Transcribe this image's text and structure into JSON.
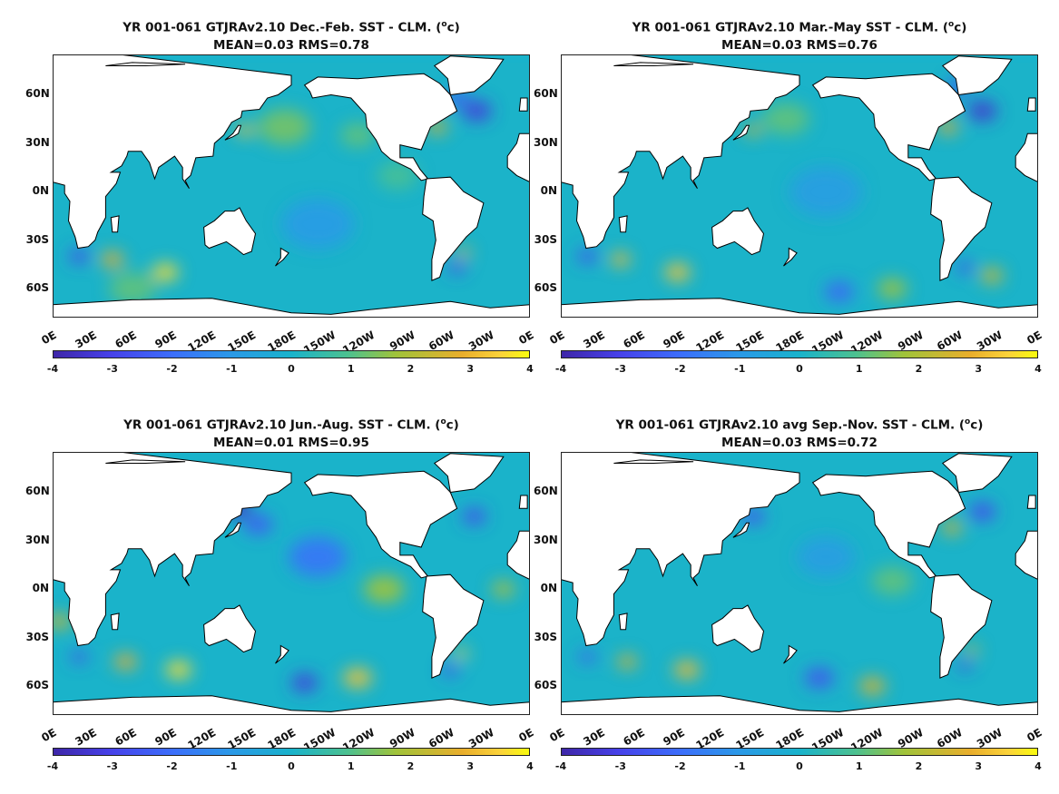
{
  "chart_data": [
    {
      "type": "heatmap",
      "title_prefix": "YR 001-061 GTJRAv2.10  Dec.-Feb. SST - CLM. (",
      "title_unit_sup": "o",
      "title_suffix": "c)",
      "subtitle": "MEAN=0.03   RMS=0.78",
      "mean": 0.03,
      "rms": 0.78,
      "colorbar": {
        "range": [
          -4,
          4
        ],
        "ticks": [
          "-4",
          "-3",
          "-2",
          "-1",
          "0",
          "1",
          "2",
          "3",
          "4"
        ]
      },
      "x_ticks": [
        "0E",
        "30E",
        "60E",
        "90E",
        "120E",
        "150E",
        "180E",
        "150W",
        "120W",
        "90W",
        "60W",
        "30W",
        "0E"
      ],
      "y_ticks": [
        "60N",
        "30N",
        "0N",
        "30S",
        "60S"
      ],
      "xlim": [
        0,
        360
      ],
      "ylim": [
        -78,
        85
      ],
      "anomalies": [
        {
          "lon": 320,
          "lat": 50,
          "value": -3.2,
          "spread": 10
        },
        {
          "lon": 305,
          "lat": 58,
          "value": -2.4,
          "spread": 8
        },
        {
          "lon": 290,
          "lat": 40,
          "value": 2.6,
          "spread": 7
        },
        {
          "lon": 145,
          "lat": 38,
          "value": 3.2,
          "spread": 6
        },
        {
          "lon": 85,
          "lat": -50,
          "value": 3.6,
          "spread": 9
        },
        {
          "lon": 45,
          "lat": -42,
          "value": 2.8,
          "spread": 8
        },
        {
          "lon": 20,
          "lat": -40,
          "value": -2.8,
          "spread": 7
        },
        {
          "lon": 305,
          "lat": -47,
          "value": -2.8,
          "spread": 6
        },
        {
          "lon": 310,
          "lat": -38,
          "value": 2.8,
          "spread": 5
        },
        {
          "lon": 175,
          "lat": 40,
          "value": 1.4,
          "spread": 18
        },
        {
          "lon": 230,
          "lat": 35,
          "value": 1.2,
          "spread": 12
        },
        {
          "lon": 200,
          "lat": -20,
          "value": -0.9,
          "spread": 25
        },
        {
          "lon": 260,
          "lat": 10,
          "value": 0.9,
          "spread": 14
        },
        {
          "lon": 60,
          "lat": -60,
          "value": 1.2,
          "spread": 16
        }
      ]
    },
    {
      "type": "heatmap",
      "title_prefix": "YR 001-061 GTJRAv2.10  Mar.-May SST - CLM. (",
      "title_unit_sup": "o",
      "title_suffix": "c)",
      "subtitle": "MEAN=0.03   RMS=0.76",
      "mean": 0.03,
      "rms": 0.76,
      "colorbar": {
        "range": [
          -4,
          4
        ],
        "ticks": [
          "-4",
          "-3",
          "-2",
          "-1",
          "0",
          "1",
          "2",
          "3",
          "4"
        ]
      },
      "x_ticks": [
        "0E",
        "30E",
        "60E",
        "90E",
        "120E",
        "150E",
        "180E",
        "150W",
        "120W",
        "90W",
        "60W",
        "30W",
        "0E"
      ],
      "y_ticks": [
        "60N",
        "30N",
        "0N",
        "30S",
        "60S"
      ],
      "xlim": [
        0,
        360
      ],
      "ylim": [
        -78,
        85
      ],
      "anomalies": [
        {
          "lon": 318,
          "lat": 50,
          "value": -3.4,
          "spread": 10
        },
        {
          "lon": 300,
          "lat": 65,
          "value": -2.6,
          "spread": 8
        },
        {
          "lon": 292,
          "lat": 40,
          "value": 2.8,
          "spread": 7
        },
        {
          "lon": 145,
          "lat": 38,
          "value": 2.4,
          "spread": 6
        },
        {
          "lon": 88,
          "lat": -50,
          "value": 3.2,
          "spread": 9
        },
        {
          "lon": 45,
          "lat": -42,
          "value": 3.0,
          "spread": 7
        },
        {
          "lon": 20,
          "lat": -40,
          "value": -2.6,
          "spread": 7
        },
        {
          "lon": 305,
          "lat": -47,
          "value": -2.6,
          "spread": 6
        },
        {
          "lon": 325,
          "lat": -52,
          "value": 2.4,
          "spread": 8
        },
        {
          "lon": 210,
          "lat": -62,
          "value": -2.2,
          "spread": 10
        },
        {
          "lon": 170,
          "lat": 45,
          "value": 1.2,
          "spread": 16
        },
        {
          "lon": 250,
          "lat": -60,
          "value": 1.8,
          "spread": 10
        },
        {
          "lon": 200,
          "lat": 0,
          "value": -0.8,
          "spread": 25
        }
      ]
    },
    {
      "type": "heatmap",
      "title_prefix": "YR 001-061 GTJRAv2.10 Jun.-Aug. SST - CLM. (",
      "title_unit_sup": "o",
      "title_suffix": "c)",
      "subtitle": "MEAN=0.01   RMS=0.95",
      "mean": 0.01,
      "rms": 0.95,
      "colorbar": {
        "range": [
          -4,
          4
        ],
        "ticks": [
          "-4",
          "-3",
          "-2",
          "-1",
          "0",
          "1",
          "2",
          "3",
          "4"
        ]
      },
      "x_ticks": [
        "0E",
        "30E",
        "60E",
        "90E",
        "120E",
        "150E",
        "180E",
        "150W",
        "120W",
        "90W",
        "60W",
        "30W",
        "0E"
      ],
      "y_ticks": [
        "60N",
        "30N",
        "0N",
        "30S",
        "60S"
      ],
      "xlim": [
        0,
        360
      ],
      "ylim": [
        -78,
        85
      ],
      "anomalies": [
        {
          "lon": 140,
          "lat": 50,
          "value": -3.6,
          "spread": 9
        },
        {
          "lon": 155,
          "lat": 40,
          "value": -2.4,
          "spread": 10
        },
        {
          "lon": 318,
          "lat": 45,
          "value": -2.8,
          "spread": 8
        },
        {
          "lon": 200,
          "lat": 20,
          "value": -1.8,
          "spread": 20
        },
        {
          "lon": 95,
          "lat": -50,
          "value": 3.6,
          "spread": 9
        },
        {
          "lon": 55,
          "lat": -45,
          "value": 2.8,
          "spread": 8
        },
        {
          "lon": 20,
          "lat": -42,
          "value": -2.6,
          "spread": 6
        },
        {
          "lon": 230,
          "lat": -55,
          "value": 3.2,
          "spread": 10
        },
        {
          "lon": 190,
          "lat": -58,
          "value": -3.2,
          "spread": 9
        },
        {
          "lon": 308,
          "lat": -40,
          "value": 3.4,
          "spread": 5
        },
        {
          "lon": 300,
          "lat": -50,
          "value": -2.6,
          "spread": 6
        },
        {
          "lon": 250,
          "lat": 0,
          "value": 1.8,
          "spread": 14
        },
        {
          "lon": 340,
          "lat": 0,
          "value": 2.0,
          "spread": 8
        },
        {
          "lon": 5,
          "lat": -20,
          "value": 2.4,
          "spread": 8
        }
      ]
    },
    {
      "type": "heatmap",
      "title_prefix": "YR 001-061 GTJRAv2.10 avg Sep.-Nov. SST - CLM. (",
      "title_unit_sup": "o",
      "title_suffix": "c)",
      "subtitle": "MEAN=0.03   RMS=0.72",
      "mean": 0.03,
      "rms": 0.72,
      "colorbar": {
        "range": [
          -4,
          4
        ],
        "ticks": [
          "-4",
          "-3",
          "-2",
          "-1",
          "0",
          "1",
          "2",
          "3",
          "4"
        ]
      },
      "x_ticks": [
        "0E",
        "30E",
        "60E",
        "90E",
        "120E",
        "150E",
        "180E",
        "150W",
        "120W",
        "90W",
        "60W",
        "30W",
        "0E"
      ],
      "y_ticks": [
        "60N",
        "30N",
        "0N",
        "30S",
        "60S"
      ],
      "xlim": [
        0,
        360
      ],
      "ylim": [
        -78,
        85
      ],
      "anomalies": [
        {
          "lon": 145,
          "lat": 45,
          "value": -2.6,
          "spread": 8
        },
        {
          "lon": 318,
          "lat": 48,
          "value": -2.8,
          "spread": 9
        },
        {
          "lon": 295,
          "lat": 38,
          "value": 2.6,
          "spread": 7
        },
        {
          "lon": 95,
          "lat": -50,
          "value": 3.0,
          "spread": 9
        },
        {
          "lon": 50,
          "lat": -45,
          "value": 2.6,
          "spread": 7
        },
        {
          "lon": 20,
          "lat": -42,
          "value": -2.4,
          "spread": 6
        },
        {
          "lon": 195,
          "lat": -55,
          "value": -2.6,
          "spread": 10
        },
        {
          "lon": 235,
          "lat": -60,
          "value": 2.6,
          "spread": 9
        },
        {
          "lon": 305,
          "lat": -47,
          "value": -3.0,
          "spread": 5
        },
        {
          "lon": 310,
          "lat": -38,
          "value": 2.4,
          "spread": 5
        },
        {
          "lon": 250,
          "lat": 5,
          "value": 1.2,
          "spread": 14
        },
        {
          "lon": 200,
          "lat": 20,
          "value": -0.8,
          "spread": 20
        }
      ]
    }
  ]
}
